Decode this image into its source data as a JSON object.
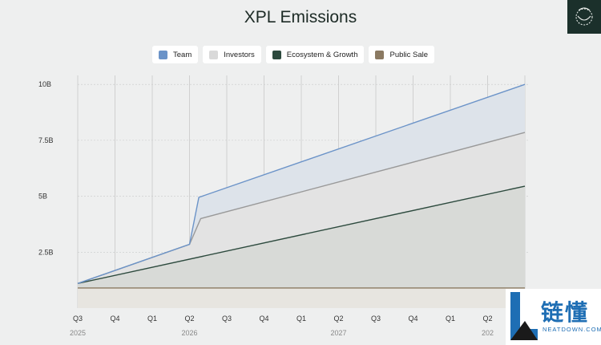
{
  "chart_data": {
    "type": "area",
    "title": "XPL Emissions",
    "legend_position": "top",
    "grid": true,
    "y_ticks": [
      {
        "label": "10B",
        "value": 10000000000
      },
      {
        "label": "7.5B",
        "value": 7500000000
      },
      {
        "label": "5B",
        "value": 5000000000
      },
      {
        "label": "2.5B",
        "value": 2500000000
      }
    ],
    "ylim": [
      0,
      10400000000
    ],
    "x_quarters": [
      "Q3",
      "Q4",
      "Q1",
      "Q2",
      "Q3",
      "Q4",
      "Q1",
      "Q2",
      "Q3",
      "Q4",
      "Q1",
      "Q2"
    ],
    "x_years": [
      {
        "label": "2025",
        "index": 0
      },
      {
        "label": "2026",
        "index": 3
      },
      {
        "label": "2027",
        "index": 7
      },
      {
        "label": "202",
        "index": 11
      }
    ],
    "series": [
      {
        "name": "Team",
        "color": "#6b93c8",
        "fill": "#dde3ea",
        "points": [
          [
            0,
            1100000000.0
          ],
          [
            3,
            2850000000.0
          ],
          [
            3.25,
            4950000000.0
          ],
          [
            12,
            10000000000.0
          ]
        ]
      },
      {
        "name": "Investors",
        "color": "#999999",
        "fill": "#e3e3e3",
        "points": [
          [
            0,
            1100000000.0
          ],
          [
            3,
            2850000000.0
          ],
          [
            3.3,
            4000000000.0
          ],
          [
            12,
            7850000000.0
          ]
        ]
      },
      {
        "name": "Ecosystem & Growth",
        "color": "#2d4a3e",
        "fill": "#d8dad7",
        "points": [
          [
            0,
            1100000000.0
          ],
          [
            12,
            5450000000.0
          ]
        ]
      },
      {
        "name": "Public Sale",
        "color": "#8b7a62",
        "fill": "#e7e5e0",
        "points": [
          [
            0,
            900000000.0
          ],
          [
            12,
            900000000.0
          ]
        ]
      }
    ]
  },
  "watermark": {
    "zh": "链懂",
    "en": "NEATDOWN.COM"
  },
  "colors": {
    "background": "#eeefef",
    "grid": "#c8c9c9"
  },
  "logo_icon": "leaf-ring-logo-icon"
}
